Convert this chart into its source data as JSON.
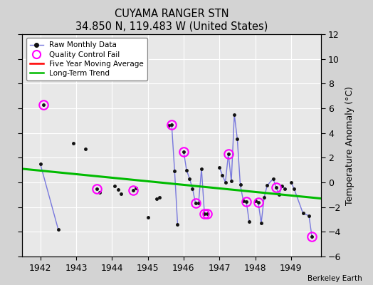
{
  "title": "CUYAMA RANGER STN",
  "subtitle": "34.850 N, 119.483 W (United States)",
  "ylabel": "Temperature Anomaly (°C)",
  "credit": "Berkeley Earth",
  "ylim": [
    -6,
    12
  ],
  "yticks": [
    -6,
    -4,
    -2,
    0,
    2,
    4,
    6,
    8,
    10,
    12
  ],
  "xlim": [
    1941.5,
    1949.83
  ],
  "xticks": [
    1942,
    1943,
    1944,
    1945,
    1946,
    1947,
    1948,
    1949
  ],
  "bg_color": "#d3d3d3",
  "plot_bg_color": "#e8e8e8",
  "raw_data": [
    [
      1942.0,
      1.5
    ],
    [
      1942.083,
      6.3
    ],
    [
      1942.5,
      -3.8
    ],
    [
      1942.917,
      3.2
    ],
    [
      1943.25,
      2.7
    ],
    [
      1943.583,
      -0.5
    ],
    [
      1943.667,
      -0.8
    ],
    [
      1944.083,
      -0.3
    ],
    [
      1944.167,
      -0.6
    ],
    [
      1944.25,
      -0.9
    ],
    [
      1944.583,
      -0.65
    ],
    [
      1944.667,
      -0.45
    ],
    [
      1945.0,
      -2.8
    ],
    [
      1945.25,
      -1.35
    ],
    [
      1945.333,
      -1.2
    ],
    [
      1945.583,
      4.6
    ],
    [
      1945.667,
      4.7
    ],
    [
      1945.75,
      0.9
    ],
    [
      1945.833,
      -3.4
    ],
    [
      1946.0,
      2.5
    ],
    [
      1946.083,
      1.0
    ],
    [
      1946.167,
      0.3
    ],
    [
      1946.25,
      -0.5
    ],
    [
      1946.333,
      -1.7
    ],
    [
      1946.417,
      -1.7
    ],
    [
      1946.5,
      1.1
    ],
    [
      1946.583,
      -2.55
    ],
    [
      1946.667,
      -2.55
    ],
    [
      1947.0,
      1.2
    ],
    [
      1947.083,
      0.6
    ],
    [
      1947.167,
      0.0
    ],
    [
      1947.25,
      2.3
    ],
    [
      1947.333,
      0.1
    ],
    [
      1947.417,
      5.5
    ],
    [
      1947.5,
      3.5
    ],
    [
      1947.583,
      -0.2
    ],
    [
      1947.667,
      -1.5
    ],
    [
      1947.75,
      -1.55
    ],
    [
      1947.833,
      -3.2
    ],
    [
      1948.0,
      -1.5
    ],
    [
      1948.083,
      -1.6
    ],
    [
      1948.167,
      -3.3
    ],
    [
      1948.25,
      -1.2
    ],
    [
      1948.333,
      -0.25
    ],
    [
      1948.5,
      0.3
    ],
    [
      1948.583,
      -0.4
    ],
    [
      1948.667,
      -1.0
    ],
    [
      1948.75,
      -0.3
    ],
    [
      1948.833,
      -0.5
    ],
    [
      1949.0,
      0.0
    ],
    [
      1949.083,
      -0.5
    ],
    [
      1949.333,
      -2.5
    ],
    [
      1949.5,
      -2.7
    ],
    [
      1949.583,
      -4.4
    ]
  ],
  "qc_fail": [
    [
      1942.083,
      6.3
    ],
    [
      1943.583,
      -0.5
    ],
    [
      1944.583,
      -0.65
    ],
    [
      1945.667,
      4.7
    ],
    [
      1946.0,
      2.5
    ],
    [
      1946.333,
      -1.7
    ],
    [
      1946.583,
      -2.55
    ],
    [
      1946.667,
      -2.55
    ],
    [
      1947.25,
      2.3
    ],
    [
      1947.75,
      -1.55
    ],
    [
      1948.083,
      -1.6
    ],
    [
      1948.583,
      -0.4
    ],
    [
      1949.583,
      -4.4
    ]
  ],
  "connected_segments": [
    [
      [
        1942.0,
        1.5
      ],
      [
        1942.5,
        -3.8
      ]
    ],
    [
      [
        1945.583,
        4.6
      ],
      [
        1945.667,
        4.7
      ],
      [
        1945.75,
        0.9
      ],
      [
        1945.833,
        -3.4
      ]
    ],
    [
      [
        1946.0,
        2.5
      ],
      [
        1946.083,
        1.0
      ],
      [
        1946.167,
        0.3
      ],
      [
        1946.25,
        -0.5
      ],
      [
        1946.333,
        -1.7
      ],
      [
        1946.417,
        -1.7
      ],
      [
        1946.5,
        1.1
      ],
      [
        1946.583,
        -2.55
      ],
      [
        1946.667,
        -2.55
      ]
    ],
    [
      [
        1947.0,
        1.2
      ],
      [
        1947.083,
        0.6
      ],
      [
        1947.167,
        0.0
      ],
      [
        1947.25,
        2.3
      ],
      [
        1947.333,
        0.1
      ],
      [
        1947.417,
        5.5
      ],
      [
        1947.5,
        3.5
      ],
      [
        1947.583,
        -0.2
      ],
      [
        1947.667,
        -1.5
      ],
      [
        1947.75,
        -1.55
      ],
      [
        1947.833,
        -3.2
      ]
    ],
    [
      [
        1948.0,
        -1.5
      ],
      [
        1948.083,
        -1.6
      ],
      [
        1948.167,
        -3.3
      ],
      [
        1948.25,
        -1.2
      ],
      [
        1948.333,
        -0.25
      ],
      [
        1948.5,
        0.3
      ],
      [
        1948.583,
        -0.4
      ],
      [
        1948.667,
        -1.0
      ],
      [
        1948.75,
        -0.3
      ],
      [
        1948.833,
        -0.5
      ]
    ],
    [
      [
        1949.0,
        0.0
      ],
      [
        1949.083,
        -0.5
      ],
      [
        1949.333,
        -2.5
      ],
      [
        1949.5,
        -2.7
      ],
      [
        1949.583,
        -4.4
      ]
    ]
  ],
  "trend_x": [
    1941.5,
    1949.83
  ],
  "trend_y": [
    1.1,
    -1.3
  ],
  "line_color": "#7777dd",
  "dot_color": "#111111",
  "qc_color": "#ff00ff",
  "trend_color": "#00bb00",
  "ma_color": "#ff0000"
}
